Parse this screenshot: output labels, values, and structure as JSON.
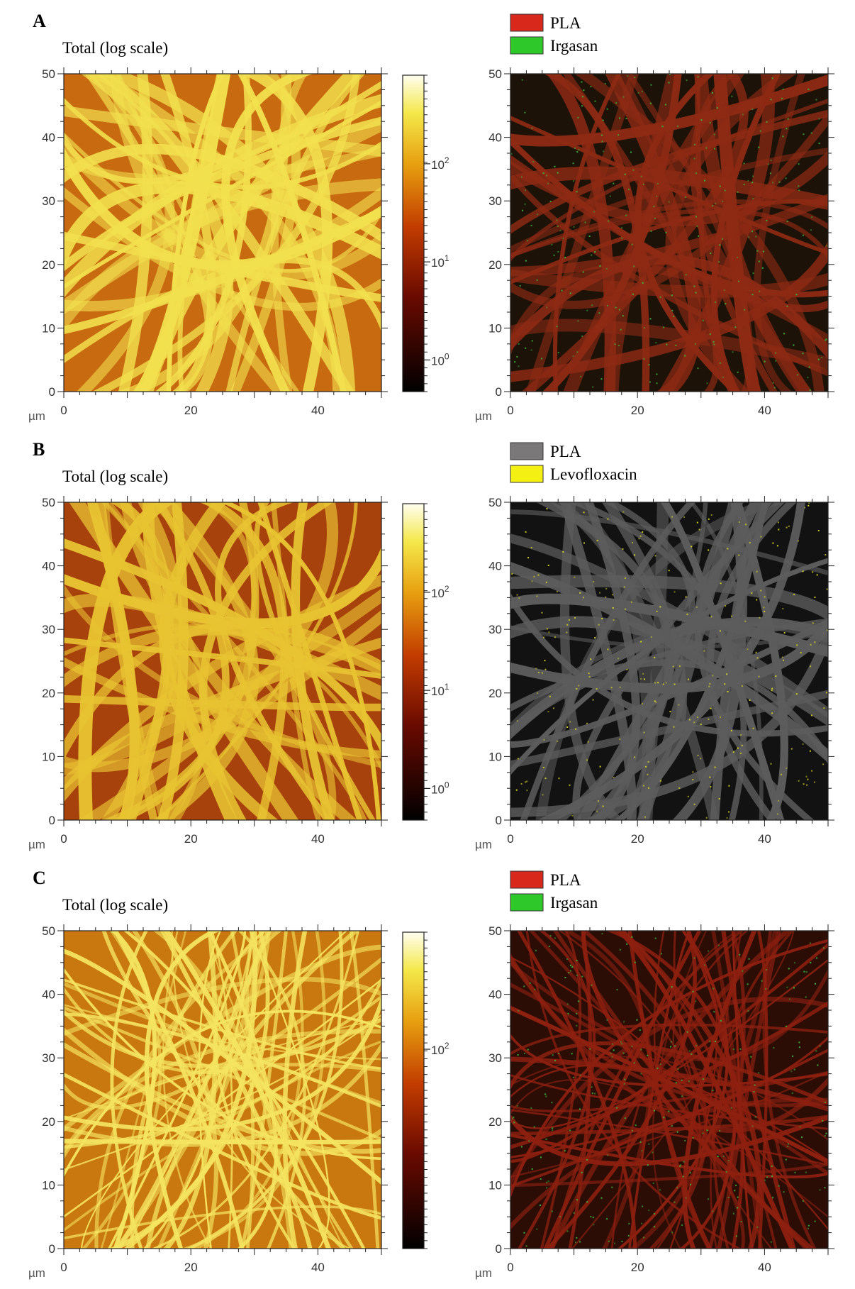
{
  "panels": [
    {
      "letter": "A",
      "left_title": "Total (log scale)",
      "colorbar_scheme": "hot",
      "colorbar_labels": [
        {
          "base": "10",
          "exp": "2",
          "frac": 0.72
        },
        {
          "base": "10",
          "exp": "1",
          "frac": 0.41
        },
        {
          "base": "10",
          "exp": "0",
          "frac": 0.1
        }
      ],
      "left_colors": {
        "bg": "#c86a10",
        "fiber": "#f2e04e"
      },
      "legend": [
        {
          "label": "PLA",
          "color": "#d8281c"
        },
        {
          "label": "Irgasan",
          "color": "#2fc82b"
        }
      ],
      "right_colors": {
        "bg": "#1c1208",
        "fiber": "#8e2a14",
        "dots": "#38b83a"
      }
    },
    {
      "letter": "B",
      "left_title": "Total (log scale)",
      "colorbar_scheme": "hot",
      "colorbar_labels": [
        {
          "base": "10",
          "exp": "2",
          "frac": 0.72
        },
        {
          "base": "10",
          "exp": "1",
          "frac": 0.41
        },
        {
          "base": "10",
          "exp": "0",
          "frac": 0.1
        }
      ],
      "left_colors": {
        "bg": "#a8420c",
        "fiber": "#e8c432"
      },
      "legend": [
        {
          "label": "PLA",
          "color": "#7a7878"
        },
        {
          "label": "Levofloxacin",
          "color": "#f4f014"
        }
      ],
      "right_colors": {
        "bg": "#121212",
        "fiber": "#5c5c5c",
        "dots": "#d8d420"
      }
    },
    {
      "letter": "C",
      "left_title": "Total (log scale)",
      "colorbar_scheme": "hot",
      "colorbar_labels": [
        {
          "base": "10",
          "exp": "2",
          "frac": 0.63
        }
      ],
      "left_colors": {
        "bg": "#c8780e",
        "fiber": "#f4e460"
      },
      "legend": [
        {
          "label": "PLA",
          "color": "#d8281c"
        },
        {
          "label": "Irgasan",
          "color": "#2fc82b"
        }
      ],
      "right_colors": {
        "bg": "#2c0d06",
        "fiber": "#8e2010",
        "dots": "#38b83a"
      }
    }
  ],
  "axes": {
    "unit": "µm",
    "x_ticks": [
      "0",
      "20",
      "40"
    ],
    "y_ticks": [
      "0",
      "10",
      "20",
      "30",
      "40",
      "50"
    ],
    "x_range": [
      0,
      50
    ],
    "y_range": [
      0,
      50
    ]
  }
}
